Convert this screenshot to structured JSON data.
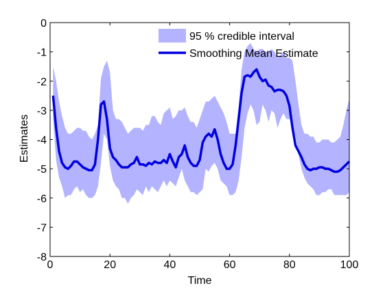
{
  "chart_data": {
    "type": "line",
    "title": "",
    "xlabel": "Time",
    "ylabel": "Estimates",
    "xlim": [
      0,
      100
    ],
    "ylim": [
      -8,
      0
    ],
    "xticks": [
      0,
      20,
      40,
      60,
      80,
      100
    ],
    "yticks": [
      0,
      -1,
      -2,
      -3,
      -4,
      -5,
      -6,
      -7,
      -8
    ],
    "grid": false,
    "legend_position": "top-right",
    "colors": {
      "band": "#b3b3ff",
      "mean": "#0000e0",
      "axis": "#000000"
    },
    "series": [
      {
        "name": "95 % credible interval",
        "kind": "band",
        "x": [
          1,
          2,
          3,
          4,
          5,
          6,
          7,
          8,
          9,
          10,
          11,
          12,
          13,
          14,
          15,
          16,
          17,
          18,
          19,
          20,
          21,
          22,
          23,
          24,
          25,
          26,
          27,
          28,
          29,
          30,
          31,
          32,
          33,
          34,
          35,
          36,
          37,
          38,
          39,
          40,
          41,
          42,
          43,
          44,
          45,
          46,
          47,
          48,
          49,
          50,
          51,
          52,
          53,
          54,
          55,
          56,
          57,
          58,
          59,
          60,
          61,
          62,
          63,
          64,
          65,
          66,
          67,
          68,
          69,
          70,
          71,
          72,
          73,
          74,
          75,
          76,
          77,
          78,
          79,
          80,
          81,
          82,
          83,
          84,
          85,
          86,
          87,
          88,
          89,
          90,
          91,
          92,
          93,
          94,
          95,
          96,
          97,
          98,
          99,
          100
        ],
        "lower": [
          -3.3,
          -4.7,
          -5.3,
          -5.6,
          -6.0,
          -5.9,
          -5.9,
          -5.7,
          -5.6,
          -5.8,
          -5.7,
          -5.9,
          -6.0,
          -6.0,
          -5.9,
          -5.6,
          -4.8,
          -3.8,
          -4.0,
          -4.9,
          -5.4,
          -5.6,
          -5.7,
          -6.0,
          -6.0,
          -6.2,
          -6.0,
          -5.9,
          -5.7,
          -5.8,
          -5.9,
          -5.6,
          -5.8,
          -5.6,
          -5.7,
          -5.8,
          -5.6,
          -5.4,
          -5.6,
          -5.4,
          -5.5,
          -5.6,
          -5.3,
          -5.0,
          -5.4,
          -5.6,
          -5.8,
          -5.8,
          -5.9,
          -5.8,
          -5.7,
          -5.0,
          -5.1,
          -4.9,
          -4.8,
          -5.0,
          -5.4,
          -5.5,
          -5.6,
          -5.9,
          -5.9,
          -5.8,
          -5.4,
          -4.6,
          -3.6,
          -3.1,
          -2.8,
          -3.0,
          -3.5,
          -3.4,
          -2.8,
          -3.0,
          -3.4,
          -3.0,
          -3.1,
          -3.6,
          -3.3,
          -3.1,
          -3.3,
          -3.3,
          -3.5,
          -3.9,
          -4.5,
          -5.0,
          -5.3,
          -5.5,
          -5.6,
          -5.7,
          -5.9,
          -5.9,
          -5.8,
          -5.8,
          -5.7,
          -5.7,
          -5.9,
          -5.9,
          -5.9,
          -5.9,
          -5.9,
          -5.8
        ],
        "upper": [
          -1.5,
          -2.0,
          -2.7,
          -3.2,
          -3.6,
          -3.8,
          -3.8,
          -3.7,
          -3.6,
          -3.6,
          -3.7,
          -3.7,
          -3.9,
          -4.0,
          -3.8,
          -3.5,
          -1.9,
          -1.5,
          -1.3,
          -1.7,
          -3.0,
          -3.3,
          -3.3,
          -3.4,
          -3.6,
          -3.8,
          -3.7,
          -3.6,
          -3.6,
          -3.6,
          -3.7,
          -3.5,
          -3.5,
          -3.2,
          -3.2,
          -3.4,
          -3.5,
          -3.1,
          -3.0,
          -2.9,
          -3.3,
          -3.2,
          -3.0,
          -3.0,
          -2.9,
          -3.2,
          -3.4,
          -3.4,
          -3.6,
          -3.3,
          -3.0,
          -2.7,
          -2.7,
          -2.6,
          -2.5,
          -2.7,
          -2.9,
          -3.1,
          -3.4,
          -3.8,
          -3.8,
          -3.8,
          -2.9,
          -1.6,
          -1.0,
          -0.8,
          -0.7,
          -0.9,
          -1.0,
          -0.9,
          -0.9,
          -1.0,
          -1.0,
          -0.9,
          -1.0,
          -1.2,
          -1.1,
          -1.0,
          -1.2,
          -1.2,
          -1.3,
          -2.0,
          -2.8,
          -3.5,
          -3.8,
          -3.8,
          -3.9,
          -3.9,
          -4.1,
          -4.1,
          -4.0,
          -4.0,
          -4.0,
          -4.1,
          -4.1,
          -4.0,
          -3.9,
          -3.5,
          -3.0,
          -2.6
        ]
      },
      {
        "name": "Smoothing Mean Estimate",
        "kind": "line",
        "x": [
          1,
          2,
          3,
          4,
          5,
          6,
          7,
          8,
          9,
          10,
          11,
          12,
          13,
          14,
          15,
          16,
          17,
          18,
          19,
          20,
          21,
          22,
          23,
          24,
          25,
          26,
          27,
          28,
          29,
          30,
          31,
          32,
          33,
          34,
          35,
          36,
          37,
          38,
          39,
          40,
          41,
          42,
          43,
          44,
          45,
          46,
          47,
          48,
          49,
          50,
          51,
          52,
          53,
          54,
          55,
          56,
          57,
          58,
          59,
          60,
          61,
          62,
          63,
          64,
          65,
          66,
          67,
          68,
          69,
          70,
          71,
          72,
          73,
          74,
          75,
          76,
          77,
          78,
          79,
          80,
          81,
          82,
          83,
          84,
          85,
          86,
          87,
          88,
          89,
          90,
          91,
          92,
          93,
          94,
          95,
          96,
          97,
          98,
          99,
          100
        ],
        "y": [
          -2.5,
          -3.6,
          -4.4,
          -4.8,
          -4.95,
          -5.0,
          -4.9,
          -4.75,
          -4.75,
          -4.85,
          -4.95,
          -5.0,
          -5.05,
          -5.05,
          -4.85,
          -4.0,
          -2.8,
          -2.7,
          -3.3,
          -4.3,
          -4.6,
          -4.7,
          -4.85,
          -4.95,
          -4.95,
          -4.95,
          -4.85,
          -4.8,
          -4.6,
          -4.85,
          -4.85,
          -4.9,
          -4.8,
          -4.85,
          -4.75,
          -4.8,
          -4.8,
          -4.7,
          -4.8,
          -4.5,
          -4.75,
          -4.95,
          -4.6,
          -4.5,
          -4.2,
          -4.6,
          -4.8,
          -4.9,
          -4.9,
          -4.7,
          -4.1,
          -3.9,
          -3.8,
          -3.9,
          -3.65,
          -4.0,
          -4.5,
          -4.8,
          -5.0,
          -5.0,
          -4.85,
          -4.2,
          -3.3,
          -2.4,
          -1.85,
          -1.8,
          -1.85,
          -1.7,
          -1.6,
          -1.85,
          -2.0,
          -1.95,
          -2.15,
          -2.2,
          -2.35,
          -2.3,
          -2.3,
          -2.35,
          -2.5,
          -2.85,
          -3.6,
          -4.2,
          -4.4,
          -4.6,
          -4.85,
          -5.0,
          -5.05,
          -5.0,
          -5.0,
          -4.95,
          -4.95,
          -5.0,
          -5.0,
          -5.05,
          -5.1,
          -5.1,
          -5.05,
          -4.95,
          -4.85,
          -4.75
        ]
      }
    ]
  }
}
